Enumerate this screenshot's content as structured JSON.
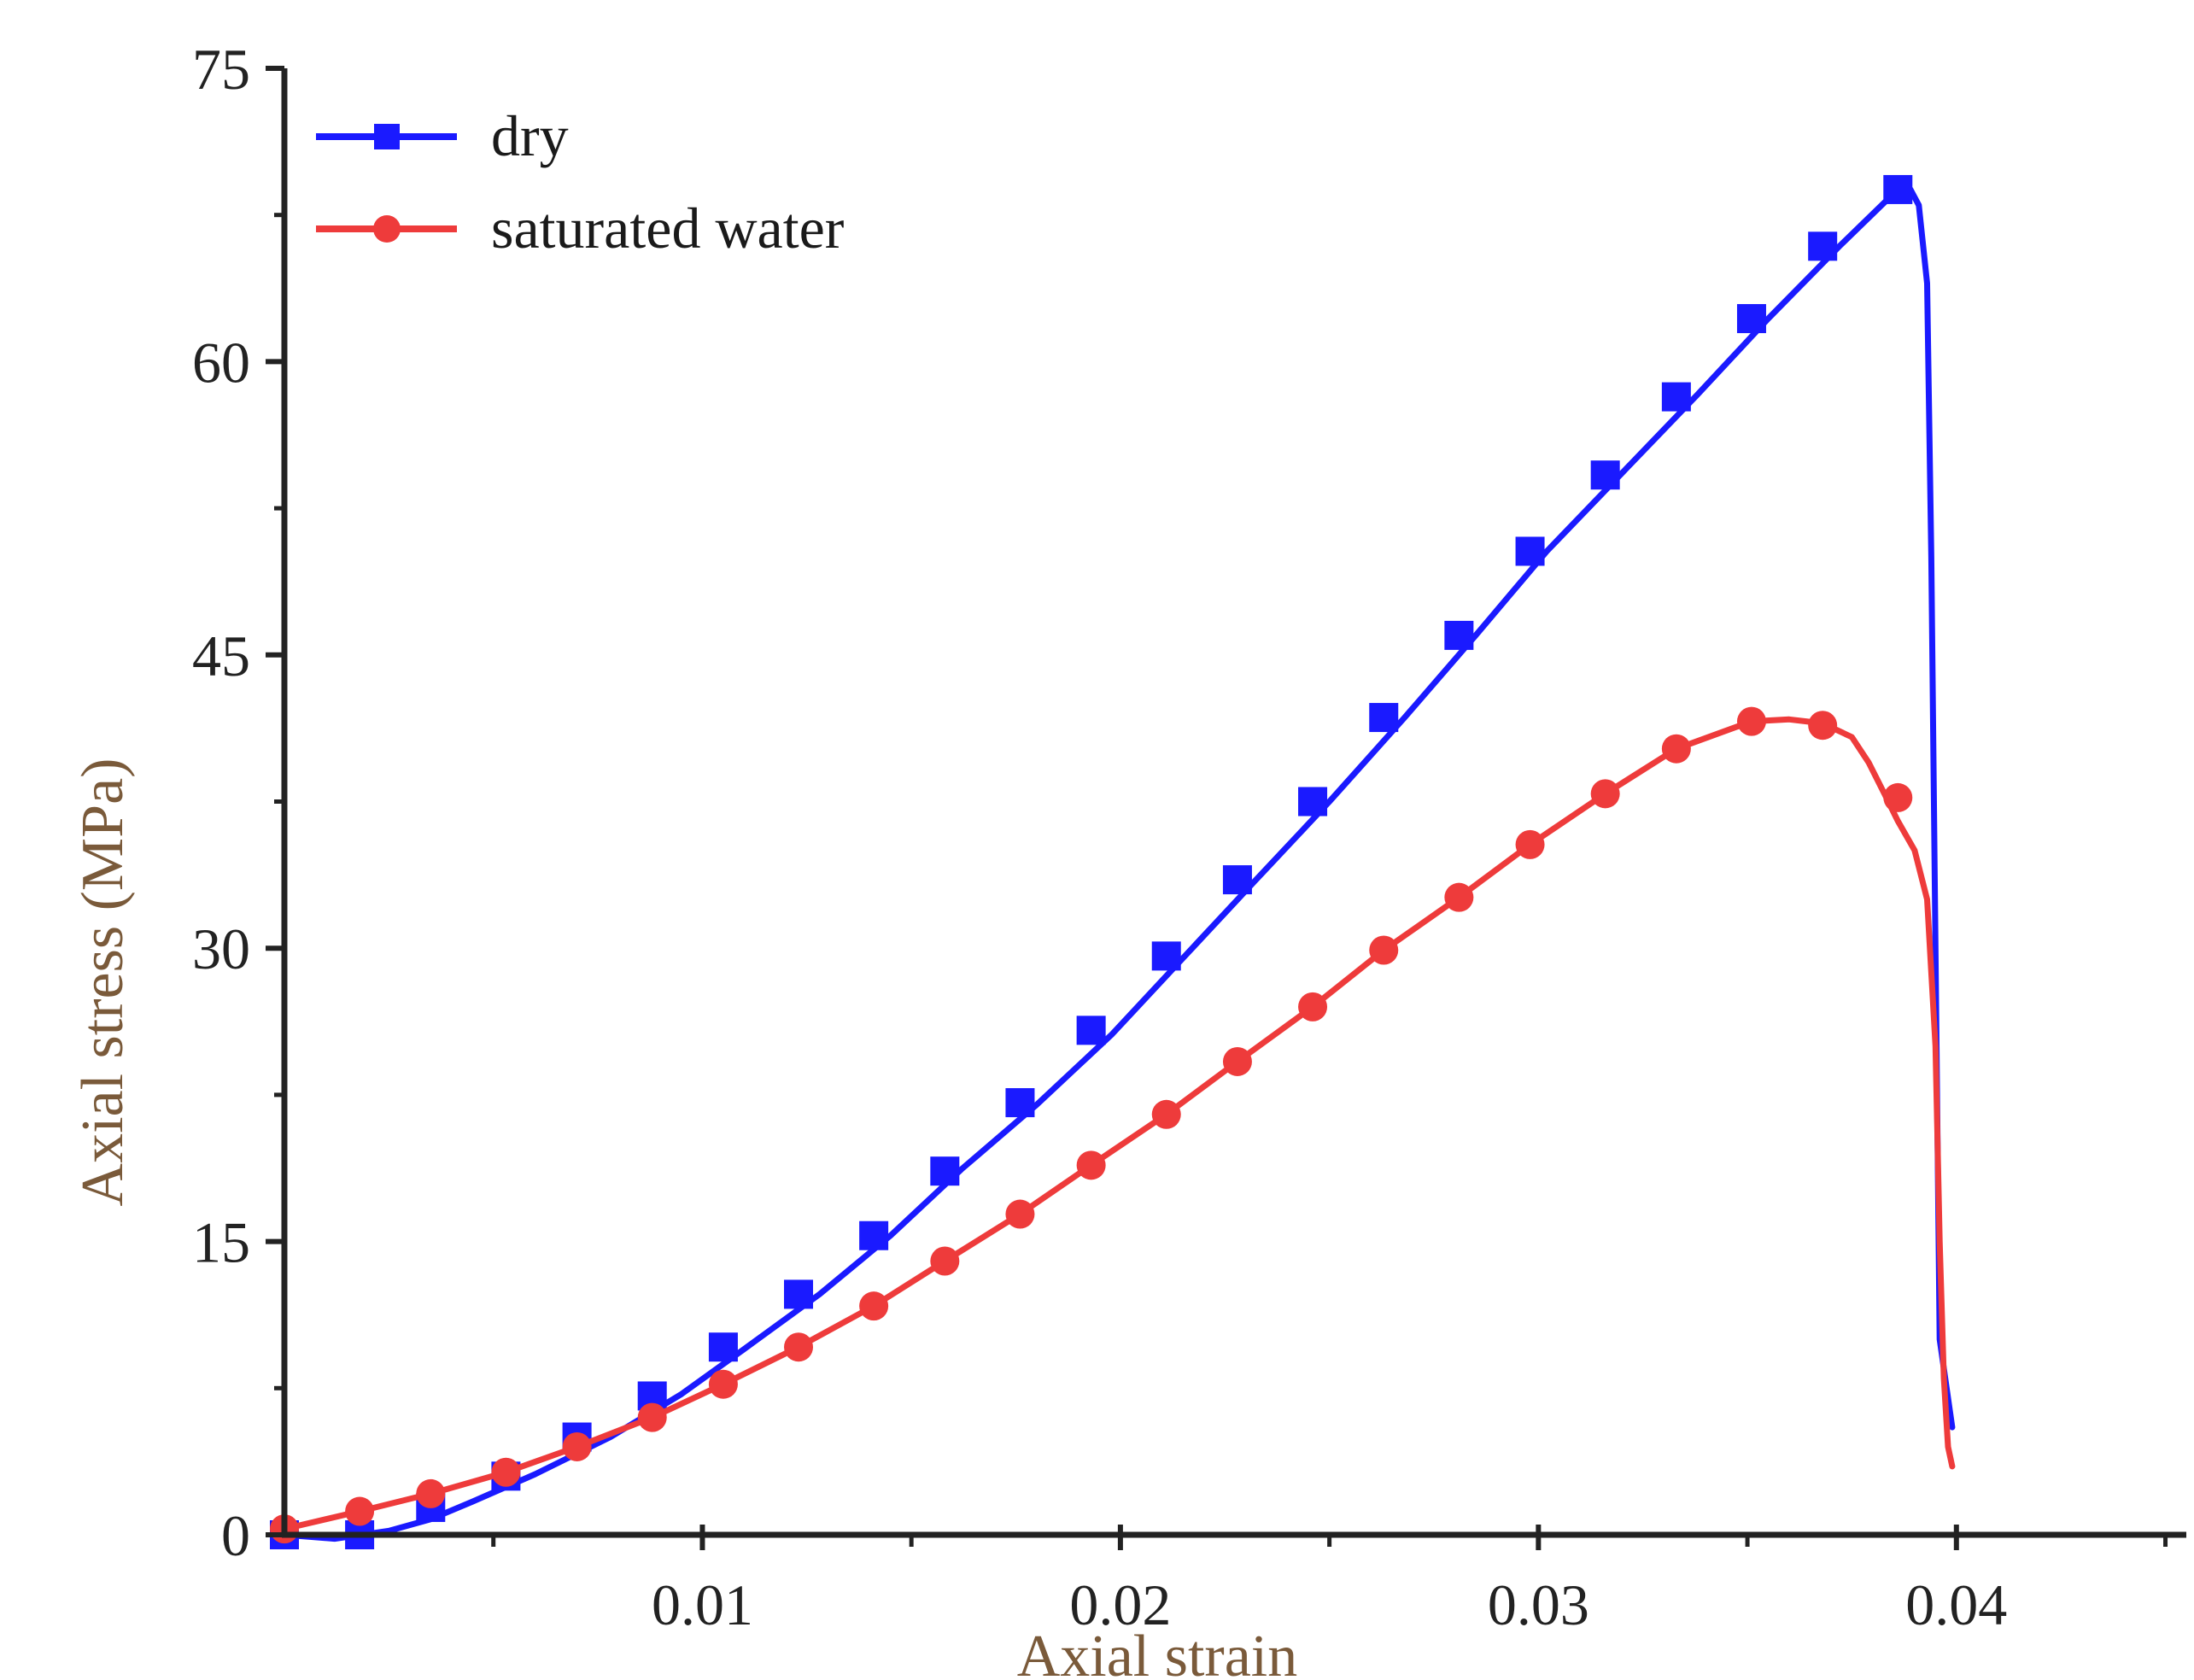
{
  "chart_data": {
    "type": "line",
    "title": "",
    "xlabel": "Axial strain",
    "ylabel": "Axial stress (MPa)",
    "xlim": [
      0,
      0.0455
    ],
    "ylim": [
      0,
      75
    ],
    "xticks": [
      0.01,
      0.02,
      0.03,
      0.04
    ],
    "xtick_labels": [
      "0.01",
      "0.02",
      "0.03",
      "0.04"
    ],
    "yticks": [
      0,
      15,
      30,
      45,
      60,
      75
    ],
    "ytick_labels": [
      "0",
      "15",
      "30",
      "45",
      "60",
      "75"
    ],
    "grid": false,
    "legend_position": "top-left",
    "series": [
      {
        "name": "dry",
        "color": "#1a1aff",
        "marker": "square",
        "line_x": [
          0.0,
          0.0012,
          0.0025,
          0.0035,
          0.0045,
          0.006,
          0.0078,
          0.0095,
          0.011,
          0.0128,
          0.0145,
          0.0162,
          0.018,
          0.0198,
          0.0215,
          0.0232,
          0.025,
          0.0268,
          0.0285,
          0.0302,
          0.032,
          0.0338,
          0.0355,
          0.0372,
          0.0385,
          0.0389,
          0.0391,
          0.0393,
          0.0394,
          0.0395,
          0.0396,
          0.0399
        ],
        "line_y": [
          0.0,
          -0.2,
          0.2,
          0.8,
          1.7,
          3.1,
          5.0,
          7.2,
          9.5,
          12.3,
          15.3,
          18.7,
          22.0,
          25.6,
          29.5,
          33.4,
          37.5,
          41.8,
          46.0,
          50.3,
          54.3,
          58.3,
          62.2,
          65.9,
          68.6,
          68.8,
          68.0,
          64.0,
          50.0,
          30.0,
          10.0,
          5.5
        ],
        "marker_x": [
          0.0,
          0.0018,
          0.0035,
          0.0053,
          0.007,
          0.0088,
          0.0105,
          0.0123,
          0.0141,
          0.0158,
          0.0176,
          0.0193,
          0.0211,
          0.0228,
          0.0246,
          0.0263,
          0.0281,
          0.0298,
          0.0316,
          0.0333,
          0.0351,
          0.0368,
          0.0386
        ],
        "marker_y": [
          0.0,
          0.0,
          1.4,
          3.0,
          5.0,
          7.1,
          9.6,
          12.3,
          15.3,
          18.6,
          22.1,
          25.8,
          29.6,
          33.5,
          37.5,
          41.8,
          46.0,
          50.3,
          54.2,
          58.2,
          62.2,
          65.9,
          68.8
        ]
      },
      {
        "name": "saturated water",
        "color": "#ee3b3b",
        "marker": "circle",
        "line_x": [
          0.0,
          0.0018,
          0.0035,
          0.0053,
          0.007,
          0.0088,
          0.0105,
          0.0123,
          0.0141,
          0.0158,
          0.0176,
          0.0193,
          0.0211,
          0.0228,
          0.0246,
          0.0263,
          0.0281,
          0.0298,
          0.0316,
          0.0333,
          0.0351,
          0.036,
          0.0368,
          0.0375,
          0.0379,
          0.0383,
          0.0386,
          0.039,
          0.0393,
          0.0395,
          0.0396,
          0.0397,
          0.0398,
          0.0399
        ],
        "line_y": [
          0.3,
          1.2,
          2.1,
          3.2,
          4.5,
          6.0,
          7.7,
          9.6,
          11.7,
          14.0,
          16.4,
          18.9,
          21.5,
          24.2,
          27.0,
          29.9,
          32.6,
          35.3,
          37.9,
          40.2,
          41.6,
          41.7,
          41.5,
          40.8,
          39.5,
          37.8,
          36.5,
          35.0,
          32.5,
          25.0,
          15.0,
          8.0,
          4.5,
          3.5
        ],
        "marker_x": [
          0.0,
          0.0018,
          0.0035,
          0.0053,
          0.007,
          0.0088,
          0.0105,
          0.0123,
          0.0141,
          0.0158,
          0.0176,
          0.0193,
          0.0211,
          0.0228,
          0.0246,
          0.0263,
          0.0281,
          0.0298,
          0.0316,
          0.0333,
          0.0351,
          0.0368,
          0.0386
        ],
        "marker_y": [
          0.3,
          1.2,
          2.1,
          3.2,
          4.5,
          6.0,
          7.7,
          9.6,
          11.7,
          14.0,
          16.4,
          18.9,
          21.5,
          24.2,
          27.0,
          29.9,
          32.6,
          35.3,
          37.9,
          40.2,
          41.6,
          41.4,
          37.7
        ]
      }
    ]
  }
}
